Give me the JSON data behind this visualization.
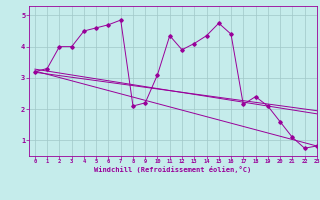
{
  "xlabel": "Windchill (Refroidissement éolien,°C)",
  "bg_color": "#c5eceb",
  "line_color": "#990099",
  "grid_color": "#a0c8c8",
  "xlim": [
    -0.5,
    23
  ],
  "ylim": [
    0.5,
    5.3
  ],
  "yticks": [
    1,
    2,
    3,
    4,
    5
  ],
  "xticks": [
    0,
    1,
    2,
    3,
    4,
    5,
    6,
    7,
    8,
    9,
    10,
    11,
    12,
    13,
    14,
    15,
    16,
    17,
    18,
    19,
    20,
    21,
    22,
    23
  ],
  "jagged_x": [
    0,
    1,
    2,
    3,
    4,
    5,
    6,
    7,
    8,
    9,
    10,
    11,
    12,
    13,
    14,
    15,
    16,
    17,
    18,
    19,
    20,
    21,
    22,
    23
  ],
  "jagged_y": [
    3.2,
    3.3,
    4.0,
    4.0,
    4.5,
    4.6,
    4.7,
    4.85,
    2.1,
    2.2,
    3.1,
    4.35,
    3.9,
    4.1,
    4.35,
    4.75,
    4.4,
    2.15,
    2.4,
    2.1,
    1.6,
    1.1,
    0.75,
    0.82
  ],
  "line1_x": [
    0,
    23
  ],
  "line1_y": [
    3.22,
    0.82
  ],
  "line2_x": [
    0,
    23
  ],
  "line2_y": [
    3.28,
    1.85
  ],
  "line3_x": [
    0,
    23
  ],
  "line3_y": [
    3.18,
    1.95
  ]
}
